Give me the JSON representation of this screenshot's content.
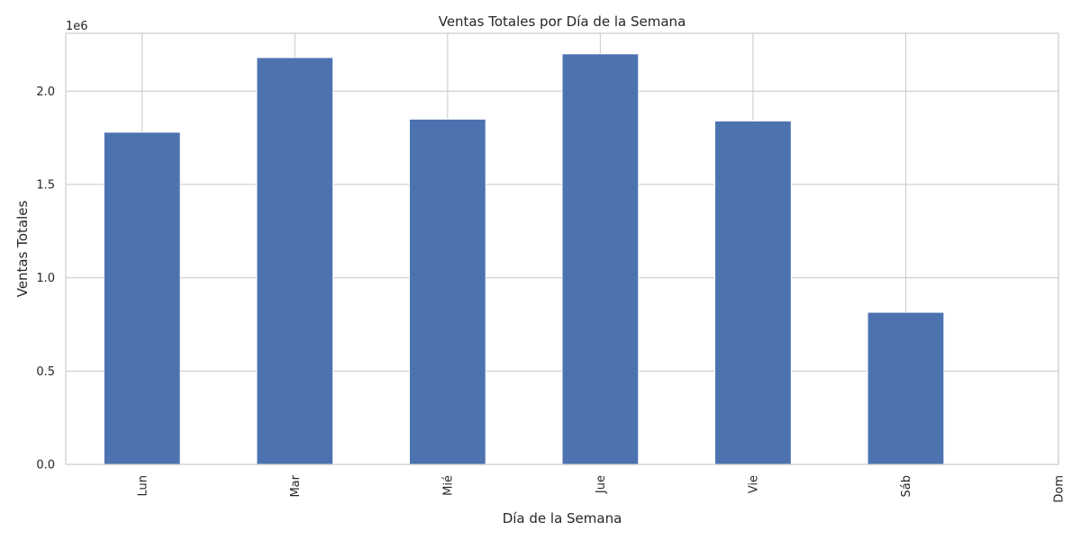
{
  "chart_data": {
    "type": "bar",
    "title": "Ventas Totales por Día de la Semana",
    "xlabel": "Día de la Semana",
    "ylabel": "Ventas Totales",
    "y_scale_label": "1e6",
    "categories": [
      "Lun",
      "Mar",
      "Mié",
      "Jue",
      "Vie",
      "Sáb",
      "Dom"
    ],
    "values": [
      1780000,
      2180000,
      1850000,
      2200000,
      1840000,
      815000,
      0
    ],
    "ylim": [
      0,
      2310000
    ],
    "yticks": [
      0,
      500000,
      1000000,
      1500000,
      2000000
    ],
    "ytick_labels": [
      "0.0",
      "0.5",
      "1.0",
      "1.5",
      "2.0"
    ],
    "grid": true,
    "bar_color": "#4c72b0"
  }
}
